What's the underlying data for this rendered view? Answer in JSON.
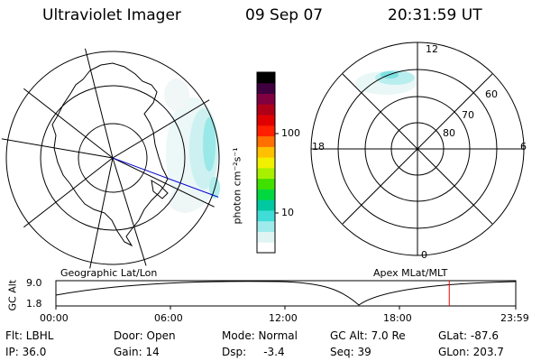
{
  "header": {
    "instrument": "Ultraviolet Imager",
    "date": "09 Sep 07",
    "time": "20:31:59 UT"
  },
  "colorbar": {
    "unit_label": "photon cm⁻²s⁻¹",
    "ticks": [
      "100",
      "10"
    ],
    "scale": "log",
    "colors": [
      "#ffffff",
      "#e0f4f4",
      "#9feaea",
      "#40dcd8",
      "#00c8a0",
      "#00d840",
      "#40e000",
      "#a8f000",
      "#f0f000",
      "#ffc000",
      "#ff7000",
      "#ff2000",
      "#e00000",
      "#b00018",
      "#800040",
      "#400040",
      "#000000"
    ]
  },
  "geo_panel": {
    "label": "Geographic Lat/Lon"
  },
  "apex_panel": {
    "label": "Apex MLat/MLT",
    "mlt_labels": {
      "top": "12",
      "bottom": "0",
      "left": "18",
      "right": "6"
    },
    "lat_labels": [
      "60",
      "70",
      "80"
    ]
  },
  "altitude_plot": {
    "ylabel": "GC Alt",
    "yticks": [
      "9.0",
      "1.8"
    ],
    "xticks": [
      "00:00",
      "06:00",
      "12:00",
      "18:00",
      "23:59"
    ],
    "current_time_marker_hours": 20.53,
    "marker_color": "#ff0000"
  },
  "footer": {
    "row1": {
      "filter": "Flt: LBHL",
      "door": "Door: Open",
      "mode": "Mode: Normal",
      "gcalt": "GC Alt: 7.0 Re",
      "glat": "GLat: -87.6"
    },
    "row2": {
      "ip": "IP: 36.0",
      "gain": "Gain: 14",
      "dsp": "Dsp:     -3.4",
      "seq": "Seq: 39",
      "glon": "GLon: 203.7"
    }
  }
}
